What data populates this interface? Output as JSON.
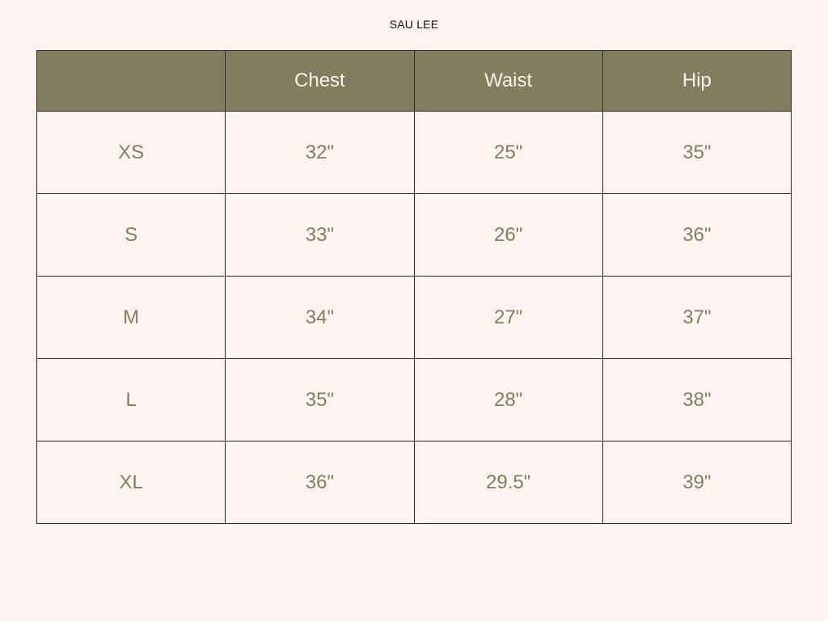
{
  "title": "SAU LEE",
  "table": {
    "headers": [
      "",
      "Chest",
      "Waist",
      "Hip"
    ],
    "rows": [
      [
        "XS",
        "32\"",
        "25\"",
        "35\""
      ],
      [
        "S",
        "33\"",
        "26\"",
        "36\""
      ],
      [
        "M",
        "34\"",
        "27\"",
        "37\""
      ],
      [
        "L",
        "35\"",
        "28\"",
        "38\""
      ],
      [
        "XL",
        "36\"",
        "29.5\"",
        "39\""
      ]
    ]
  },
  "colors": {
    "background": "#fdf3f1",
    "header": "#7f7f5f",
    "header_text": "#fbf3e6",
    "cell_text": "#7f7f5f"
  }
}
